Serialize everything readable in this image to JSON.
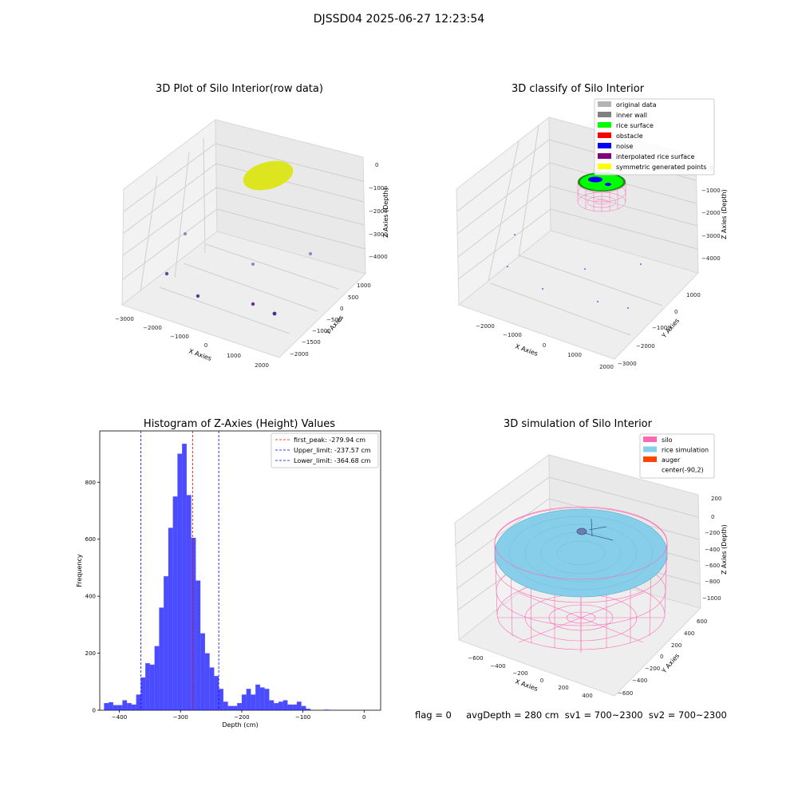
{
  "suptitle": "DJSSD04 2025-06-27 12:23:54",
  "chart_data": [
    {
      "type": "scatter",
      "title": "3D Plot of Silo Interior(row data)",
      "xlabel": "X Axies",
      "ylabel": "Y Axies",
      "zlabel": "Z Axies (Depth)",
      "x_ticks": [
        "−3000",
        "−2000",
        "−1000",
        "0",
        "1000",
        "2000"
      ],
      "y_ticks": [
        "1000",
        "500",
        "0",
        "−500",
        "−1000",
        "−1500",
        "−2000"
      ],
      "z_ticks": [
        "0",
        "−1000",
        "−2000",
        "−3000",
        "−4000"
      ],
      "colors": {
        "surface": "#dde51e",
        "points": "#3c3c96"
      }
    },
    {
      "type": "scatter",
      "title": "3D classify of Silo Interior",
      "xlabel": "X Axies",
      "ylabel": "Y Axies",
      "zlabel": "Z Axies (Depth)",
      "x_ticks": [
        "−2000",
        "−1000",
        "0",
        "1000",
        "2000"
      ],
      "y_ticks": [
        "1000",
        "0",
        "−1000",
        "−2000",
        "−3000"
      ],
      "z_ticks": [
        "0",
        "−1000",
        "−2000",
        "−3000",
        "−4000"
      ],
      "legend": [
        {
          "label": "original data",
          "color": "#b4b4b4"
        },
        {
          "label": "inner wall",
          "color": "#808080"
        },
        {
          "label": "rice surface",
          "color": "#00ff00"
        },
        {
          "label": "obstacle",
          "color": "#ff0000"
        },
        {
          "label": "noise",
          "color": "#0000ff"
        },
        {
          "label": "interpolated rice surface",
          "color": "#800080"
        },
        {
          "label": "symmetric generated points",
          "color": "#ffff00"
        }
      ],
      "legend_position": "top-right"
    },
    {
      "type": "bar",
      "title": "Histogram of Z-Axies (Height) Values",
      "xlabel": "Depth (cm)",
      "ylabel": "Frequency",
      "xlim": [
        -432,
        27
      ],
      "ylim": [
        0,
        980
      ],
      "x_ticks": [
        -400,
        -300,
        -200,
        -100,
        0
      ],
      "y_ticks": [
        0,
        200,
        400,
        600,
        800
      ],
      "bin_start": -425,
      "bin_width": 7.5,
      "values": [
        25,
        28,
        18,
        18,
        35,
        25,
        20,
        55,
        115,
        165,
        160,
        225,
        360,
        470,
        640,
        750,
        900,
        935,
        755,
        605,
        455,
        270,
        200,
        150,
        120,
        75,
        30,
        15,
        15,
        25,
        55,
        75,
        55,
        90,
        80,
        75,
        35,
        25,
        30,
        35,
        20,
        20,
        30,
        15,
        5,
        0,
        0,
        0,
        2,
        0
      ],
      "bar_color": "#0000ff",
      "lines": [
        {
          "x": -279.94,
          "label": "first_peak: -279.94 cm",
          "color": "#ff0000"
        },
        {
          "x": -237.57,
          "label": "Upper_limit: -237.57 cm",
          "color": "#0000ff"
        },
        {
          "x": -364.68,
          "label": "Lower_limit: -364.68 cm",
          "color": "#0000ff"
        }
      ],
      "legend_position": "top-right"
    },
    {
      "type": "area",
      "title": "3D simulation of Silo Interior",
      "xlabel": "X Axies",
      "ylabel": "Y Axies",
      "zlabel": "Z Axies (Depth)",
      "x_ticks": [
        "−600",
        "−400",
        "−200",
        "0",
        "200",
        "400"
      ],
      "y_ticks": [
        "600",
        "400",
        "200",
        "0",
        "−200",
        "−400",
        "−600"
      ],
      "z_ticks": [
        "200",
        "0",
        "−200",
        "−400",
        "−600",
        "−800",
        "−1000"
      ],
      "legend": [
        {
          "label": "silo",
          "color": "#ff69b4"
        },
        {
          "label": "rice simulation",
          "color": "#87ceeb"
        },
        {
          "label": "auger",
          "color": "#ff4500"
        },
        {
          "label": "center(-90,2)",
          "color": "none"
        }
      ],
      "legend_position": "top-right"
    }
  ],
  "bottom_info": "flag = 0     avgDepth = 280 cm  sv1 = 700~2300  sv2 = 700~2300"
}
